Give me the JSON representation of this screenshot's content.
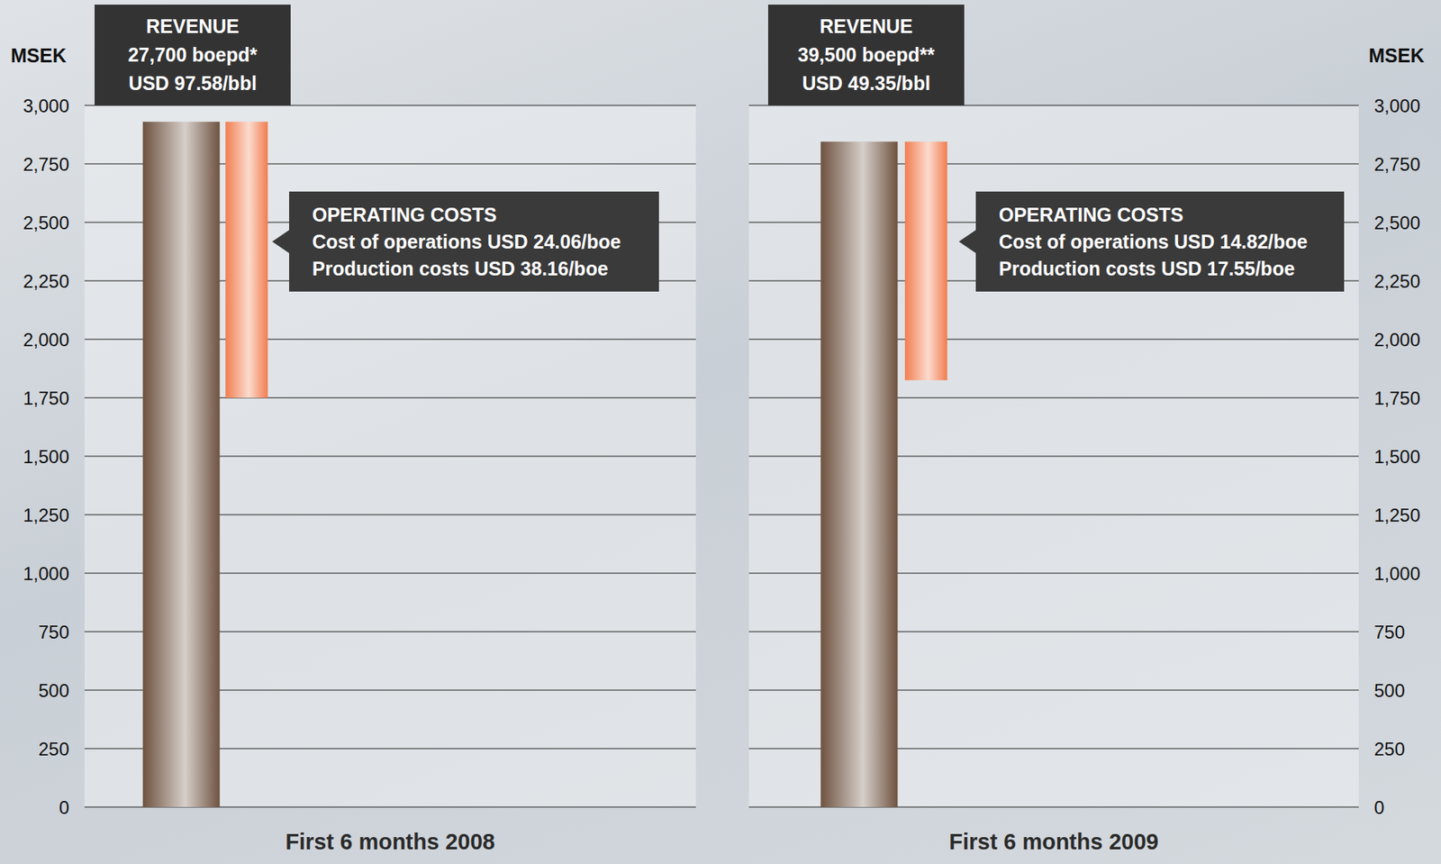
{
  "chart_data": [
    {
      "type": "bar",
      "title": "First 6 months 2008",
      "y_label": "MSEK",
      "categories": [
        null,
        null
      ],
      "values": [
        [
          0,
          2930
        ],
        [
          1750,
          2930
        ]
      ],
      "colors": [
        "#6e5240",
        "#f27d50"
      ],
      "ylim": [
        0,
        3000
      ],
      "yticks": [
        0,
        250,
        500,
        750,
        {
          "value": 1000,
          "label": "1,000"
        },
        {
          "value": 1250,
          "label": "1,250"
        },
        {
          "value": 1500,
          "label": "1,500"
        },
        {
          "value": 1750,
          "label": "1,750"
        },
        {
          "value": 2000,
          "label": "2,000"
        },
        {
          "value": 2250,
          "label": "2,250"
        },
        {
          "value": 2500,
          "label": "2,500"
        },
        {
          "value": 2750,
          "label": "2,750"
        },
        {
          "value": 3000,
          "label": "3,000"
        }
      ],
      "grid": true,
      "annotations": [
        [
          "REVENUE",
          "27,700 boepd*",
          "USD 97.58/bbl"
        ],
        [
          "OPERATING COSTS",
          "Cost of operations USD 24.06/boe",
          "Production costs USD 38.16/boe"
        ]
      ]
    },
    {
      "type": "bar",
      "title": "First 6 months 2009",
      "y_label": "MSEK",
      "categories": [
        null,
        null
      ],
      "values": [
        [
          0,
          2845
        ],
        [
          1825,
          2845
        ]
      ],
      "colors": [
        "#6e5240",
        "#f27d50"
      ],
      "ylim": [
        0,
        3000
      ],
      "yticks": [
        0,
        250,
        500,
        750,
        {
          "value": 1000,
          "label": "1,000"
        },
        {
          "value": 1250,
          "label": "1,250"
        },
        {
          "value": 1500,
          "label": "1,500"
        },
        {
          "value": 1750,
          "label": "1,750"
        },
        {
          "value": 2000,
          "label": "2,000"
        },
        {
          "value": 2250,
          "label": "2,250"
        },
        {
          "value": 2500,
          "label": "2,500"
        },
        {
          "value": 2750,
          "label": "2,750"
        },
        {
          "value": 3000,
          "label": "3,000"
        }
      ],
      "grid": true,
      "annotations": [
        [
          "REVENUE",
          "39,500 boepd**",
          "USD 49.35/bbl"
        ],
        [
          "OPERATING COSTS",
          "Cost of operations USD 14.82/boe",
          "Production costs USD 17.55/boe"
        ]
      ]
    }
  ]
}
